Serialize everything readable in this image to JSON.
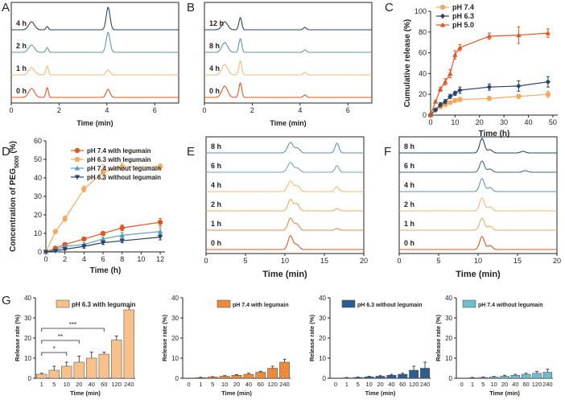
{
  "chart_data": [
    {
      "panel": "A",
      "type": "line",
      "subtype": "stacked-chromatogram",
      "xlabel": "Time (min)",
      "xlim": [
        0,
        7
      ],
      "xticks": [
        0,
        2,
        4,
        6
      ],
      "traces": [
        {
          "label": "4 h",
          "color": "#27485f",
          "peaks": [
            {
              "x": 0.85,
              "h": 10,
              "w": 0.12
            },
            {
              "x": 1.5,
              "h": 4,
              "w": 0.05
            },
            {
              "x": 4.05,
              "h": 28,
              "w": 0.08
            }
          ]
        },
        {
          "label": "2 h",
          "color": "#5f97a4",
          "peaks": [
            {
              "x": 0.85,
              "h": 9,
              "w": 0.12
            },
            {
              "x": 1.5,
              "h": 6,
              "w": 0.05
            },
            {
              "x": 4.05,
              "h": 25,
              "w": 0.08
            }
          ]
        },
        {
          "label": "1 h",
          "color": "#f5b873",
          "peaks": [
            {
              "x": 0.85,
              "h": 9,
              "w": 0.12
            },
            {
              "x": 1.5,
              "h": 11,
              "w": 0.05
            },
            {
              "x": 4.05,
              "h": 6,
              "w": 0.08
            }
          ]
        },
        {
          "label": "0 h",
          "color": "#e4541f",
          "peaks": [
            {
              "x": 0.85,
              "h": 11,
              "w": 0.12
            },
            {
              "x": 1.5,
              "h": 12,
              "w": 0.05
            },
            {
              "x": 4.05,
              "h": 10,
              "w": 0.08
            }
          ]
        }
      ]
    },
    {
      "panel": "B",
      "type": "line",
      "subtype": "stacked-chromatogram",
      "xlabel": "Time (min)",
      "xlim": [
        0,
        7
      ],
      "xticks": [
        0,
        2,
        4,
        6
      ],
      "traces": [
        {
          "label": "12 h",
          "color": "#27485f",
          "peaks": [
            {
              "x": 0.85,
              "h": 10,
              "w": 0.12
            },
            {
              "x": 1.5,
              "h": 15,
              "w": 0.06
            },
            {
              "x": 4.2,
              "h": 3,
              "w": 0.06
            }
          ]
        },
        {
          "label": "8 h",
          "color": "#5f97a4",
          "peaks": [
            {
              "x": 0.85,
              "h": 12,
              "w": 0.12
            },
            {
              "x": 1.5,
              "h": 17,
              "w": 0.06
            },
            {
              "x": 4.2,
              "h": 3,
              "w": 0.06
            }
          ]
        },
        {
          "label": "4 h",
          "color": "#f5b873",
          "peaks": [
            {
              "x": 0.85,
              "h": 13,
              "w": 0.12
            },
            {
              "x": 1.5,
              "h": 17,
              "w": 0.06
            },
            {
              "x": 4.2,
              "h": 3,
              "w": 0.06
            }
          ]
        },
        {
          "label": "0 h",
          "color": "#e4541f",
          "peaks": [
            {
              "x": 0.85,
              "h": 14,
              "w": 0.12
            },
            {
              "x": 1.5,
              "h": 18,
              "w": 0.06
            },
            {
              "x": 4.2,
              "h": 3,
              "w": 0.06
            }
          ]
        }
      ]
    },
    {
      "panel": "C",
      "type": "line",
      "xlabel": "Time (h)",
      "ylabel": "Cumulative release (%)",
      "xlim": [
        0,
        52
      ],
      "ylim": [
        0,
        100
      ],
      "xticks": [
        0,
        10,
        20,
        30,
        40,
        50
      ],
      "yticks": [
        0,
        20,
        40,
        60,
        80,
        100
      ],
      "legend": "top-left",
      "series": [
        {
          "name": "pH 7.4",
          "color": "#f5a95d",
          "marker": "circle",
          "x": [
            0,
            2,
            4,
            6,
            8,
            10,
            12,
            24,
            36,
            48
          ],
          "values": [
            0,
            5,
            8,
            10,
            12,
            14,
            15,
            16,
            18,
            20
          ],
          "err": [
            0,
            1,
            1,
            1,
            1,
            1,
            2,
            2,
            2,
            3
          ]
        },
        {
          "name": "pH 6.3",
          "color": "#27456b",
          "marker": "diamond",
          "x": [
            0,
            2,
            4,
            6,
            8,
            10,
            12,
            24,
            36,
            48
          ],
          "values": [
            0,
            5,
            10,
            13,
            18,
            21,
            24,
            27,
            28,
            32
          ],
          "err": [
            0,
            1,
            2,
            2,
            2,
            2,
            3,
            3,
            5,
            5
          ]
        },
        {
          "name": "pH 5.0",
          "color": "#e4541f",
          "marker": "triangle",
          "x": [
            0,
            2,
            4,
            6,
            8,
            10,
            12,
            24,
            36,
            48
          ],
          "values": [
            0,
            13,
            25,
            32,
            40,
            58,
            65,
            76,
            77,
            79
          ],
          "err": [
            0,
            1,
            2,
            3,
            4,
            4,
            3,
            3,
            8,
            4
          ]
        }
      ]
    },
    {
      "panel": "D",
      "type": "line",
      "xlabel": "Time (h)",
      "ylabel": "Concentration of PEG",
      "ylabel_subscript": "5000",
      "ylabel_suffix": " (%)",
      "xlim": [
        0,
        12.5
      ],
      "ylim": [
        0,
        60
      ],
      "xticks": [
        0,
        2,
        4,
        6,
        8,
        10,
        12
      ],
      "yticks": [
        0,
        10,
        20,
        30,
        40,
        50,
        60
      ],
      "legend": "top-right",
      "series": [
        {
          "name": "pH 7.4 with legumain",
          "color": "#e4541f",
          "marker": "circle",
          "x": [
            0,
            1,
            2,
            4,
            6,
            8,
            12
          ],
          "values": [
            0,
            2,
            4,
            7,
            10,
            13,
            16
          ],
          "err": [
            0,
            0.5,
            1,
            1,
            1,
            1.5,
            2
          ]
        },
        {
          "name": "pH 6.3 with legumain",
          "color": "#f5a95d",
          "marker": "circle",
          "x": [
            0,
            1,
            2,
            4,
            6,
            8,
            12
          ],
          "values": [
            0,
            11,
            18,
            34,
            43,
            46,
            46
          ],
          "err": [
            0,
            1,
            1.5,
            1.5,
            4,
            2,
            1.5
          ]
        },
        {
          "name": "pH 7.4 without legumain",
          "color": "#5b9bb4",
          "marker": "triangle",
          "x": [
            0,
            1,
            2,
            4,
            6,
            8,
            12
          ],
          "values": [
            0,
            1,
            3,
            4,
            7,
            9,
            11
          ],
          "err": [
            0,
            0.5,
            0.5,
            1,
            1,
            1.5,
            2
          ]
        },
        {
          "name": "pH 6.3 without legumain",
          "color": "#27456b",
          "marker": "down-triangle",
          "x": [
            0,
            1,
            2,
            4,
            6,
            8,
            12
          ],
          "values": [
            0,
            0.5,
            1.5,
            3,
            5,
            6,
            8
          ],
          "err": [
            0,
            0.5,
            0.5,
            1,
            1,
            1,
            1.5
          ]
        }
      ]
    },
    {
      "panel": "E",
      "type": "line",
      "subtype": "stacked-chromatogram",
      "xlabel": "Time (min)",
      "xlim": [
        0,
        20
      ],
      "xticks": [
        0,
        5,
        10,
        15,
        20
      ],
      "traces": [
        {
          "label": "8 h",
          "color": "#5f97a4",
          "peaks": [
            {
              "x": 10.7,
              "h": 13,
              "w": 0.35
            },
            {
              "x": 11.6,
              "h": 6,
              "w": 0.3
            },
            {
              "x": 16.6,
              "h": 12,
              "w": 0.25
            }
          ]
        },
        {
          "label": "6 h",
          "color": "#6fa8b8",
          "peaks": [
            {
              "x": 10.7,
              "h": 12,
              "w": 0.35
            },
            {
              "x": 11.6,
              "h": 5,
              "w": 0.3
            },
            {
              "x": 16.6,
              "h": 8,
              "w": 0.25
            }
          ]
        },
        {
          "label": "4 h",
          "color": "#f5b873",
          "peaks": [
            {
              "x": 10.7,
              "h": 13,
              "w": 0.35
            },
            {
              "x": 11.6,
              "h": 7,
              "w": 0.3
            },
            {
              "x": 16.6,
              "h": 6,
              "w": 0.25
            }
          ]
        },
        {
          "label": "2 h",
          "color": "#f5a95d",
          "peaks": [
            {
              "x": 10.7,
              "h": 14,
              "w": 0.3
            },
            {
              "x": 11.5,
              "h": 9,
              "w": 0.3
            },
            {
              "x": 16.6,
              "h": 3,
              "w": 0.25
            }
          ]
        },
        {
          "label": "1 h",
          "color": "#ec8a3e",
          "peaks": [
            {
              "x": 10.7,
              "h": 15,
              "w": 0.3
            },
            {
              "x": 11.5,
              "h": 8,
              "w": 0.3
            },
            {
              "x": 16.6,
              "h": 2,
              "w": 0.25
            }
          ]
        },
        {
          "label": "0 h",
          "color": "#e4541f",
          "peaks": [
            {
              "x": 10.7,
              "h": 17,
              "w": 0.3
            },
            {
              "x": 11.5,
              "h": 6,
              "w": 0.3
            }
          ]
        }
      ]
    },
    {
      "panel": "F",
      "type": "line",
      "subtype": "stacked-chromatogram",
      "xlabel": "Time (min)",
      "xlim": [
        0,
        20
      ],
      "xticks": [
        0,
        5,
        10,
        15,
        20
      ],
      "traces": [
        {
          "label": "8 h",
          "color": "#27485f",
          "peaks": [
            {
              "x": 10.5,
              "h": 18,
              "w": 0.3
            },
            {
              "x": 11.5,
              "h": 4,
              "w": 0.3
            },
            {
              "x": 15.7,
              "h": 2,
              "w": 0.3
            }
          ]
        },
        {
          "label": "6 h",
          "color": "#3d6e8a",
          "peaks": [
            {
              "x": 10.5,
              "h": 14,
              "w": 0.3
            },
            {
              "x": 11.5,
              "h": 4,
              "w": 0.3
            },
            {
              "x": 16.0,
              "h": 2,
              "w": 0.3
            }
          ]
        },
        {
          "label": "4 h",
          "color": "#5f97a4",
          "peaks": [
            {
              "x": 10.5,
              "h": 16,
              "w": 0.3
            },
            {
              "x": 11.5,
              "h": 5,
              "w": 0.3
            }
          ]
        },
        {
          "label": "2 h",
          "color": "#f5b873",
          "peaks": [
            {
              "x": 10.5,
              "h": 16,
              "w": 0.3
            },
            {
              "x": 11.5,
              "h": 5,
              "w": 0.3
            }
          ]
        },
        {
          "label": "1 h",
          "color": "#f5a95d",
          "peaks": [
            {
              "x": 10.5,
              "h": 15,
              "w": 0.3
            },
            {
              "x": 11.5,
              "h": 5,
              "w": 0.3
            }
          ]
        },
        {
          "label": "0 h",
          "color": "#e4541f",
          "peaks": [
            {
              "x": 10.5,
              "h": 16,
              "w": 0.3
            },
            {
              "x": 11.5,
              "h": 5,
              "w": 0.3
            }
          ]
        }
      ]
    },
    {
      "panel": "G1",
      "type": "bar",
      "title": "pH 6.3 with legumain",
      "color": "#f8c08a",
      "xlabel": "Time (min)",
      "ylabel": "Release rate (%)",
      "ylim": [
        0,
        40
      ],
      "yticks": [
        0,
        10,
        20,
        30,
        40
      ],
      "categories": [
        "1",
        "5",
        "10",
        "20",
        "40",
        "60",
        "120",
        "240"
      ],
      "values": [
        2,
        4,
        6,
        8,
        10,
        12,
        19,
        34
      ],
      "err": [
        0.5,
        2,
        2,
        3,
        3,
        1,
        2,
        1.5
      ],
      "significance": [
        {
          "from": "1",
          "to": "10",
          "label": "*"
        },
        {
          "from": "1",
          "to": "20",
          "label": "**"
        },
        {
          "from": "1",
          "to": "60",
          "label": "***"
        }
      ]
    },
    {
      "panel": "G2",
      "type": "bar",
      "title": "pH 7.4 with legumain",
      "color": "#ef8a3c",
      "xlabel": "Time (min)",
      "ylabel": "Release rate (%)",
      "ylim": [
        0,
        40
      ],
      "yticks": [
        0,
        10,
        20,
        30,
        40
      ],
      "categories": [
        "0",
        "1",
        "5",
        "10",
        "20",
        "40",
        "60",
        "120",
        "240"
      ],
      "values": [
        0,
        0.3,
        0.6,
        1,
        1.5,
        2,
        3,
        5,
        8
      ],
      "err": [
        0,
        0.2,
        0.2,
        0.3,
        0.3,
        0.5,
        0.5,
        1,
        1.5
      ]
    },
    {
      "panel": "G3",
      "type": "bar",
      "title": "pH 6.3 without legumain",
      "color": "#2f5e8e",
      "xlabel": "Time (min)",
      "ylabel": "Release rate (%)",
      "ylim": [
        0,
        40
      ],
      "yticks": [
        0,
        10,
        20,
        30,
        40
      ],
      "categories": [
        "0",
        "1",
        "5",
        "10",
        "20",
        "40",
        "60",
        "120",
        "240"
      ],
      "values": [
        0,
        0.2,
        0.4,
        0.7,
        1,
        1.5,
        2,
        4,
        5
      ],
      "err": [
        0,
        0.2,
        0.2,
        0.3,
        0.3,
        0.5,
        0.5,
        2,
        3
      ]
    },
    {
      "panel": "G4",
      "type": "bar",
      "title": "pH 7.4 without legumain",
      "color": "#72bcd0",
      "xlabel": "Time (min)",
      "ylabel": "Release rate (%)",
      "ylim": [
        0,
        40
      ],
      "yticks": [
        0,
        10,
        20,
        30,
        40
      ],
      "categories": [
        "0",
        "1",
        "5",
        "10",
        "20",
        "40",
        "60",
        "120",
        "240"
      ],
      "values": [
        0,
        0.2,
        0.4,
        0.6,
        1,
        1.5,
        2,
        2.5,
        3
      ],
      "err": [
        0,
        0.2,
        0.2,
        0.3,
        0.5,
        0.5,
        0.5,
        1,
        1.5
      ]
    }
  ]
}
